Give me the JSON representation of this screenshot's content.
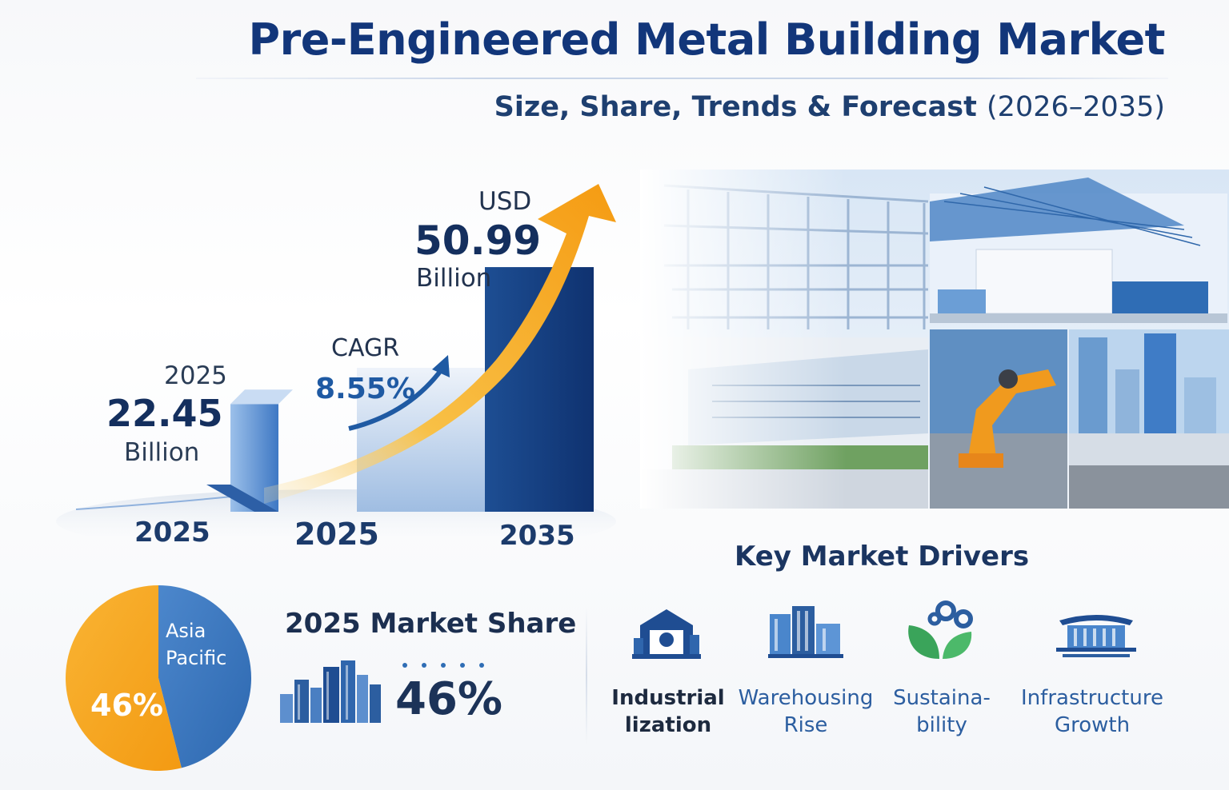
{
  "header": {
    "title": "Pre-Engineered Metal Building Market",
    "subtitle_main": "Size, Share, Trends & Forecast",
    "subtitle_years": "(2026–2035)"
  },
  "chart_data": [
    {
      "type": "bar",
      "categories": [
        "2025",
        "2025",
        "2035"
      ],
      "values": [
        22.45,
        30,
        50.99
      ],
      "unit": "Billion",
      "callouts": {
        "start_year": "2025",
        "start_value": "22.45",
        "start_unit": "Billion",
        "cagr_label": "CAGR",
        "cagr_value": "8.55%",
        "end_currency": "USD",
        "end_value": "50.99",
        "end_unit": "Billion"
      },
      "trend_arrow": true,
      "colors": {
        "bar_light": "#6f9fd8",
        "bar_dark": "#163f7f",
        "arrow": "#f4a51c"
      }
    },
    {
      "type": "pie",
      "title": "2025 Market Share",
      "slices": [
        {
          "label": "Asia Pacific",
          "value": 46,
          "color": "#3b78c1"
        },
        {
          "label": "",
          "value": 54,
          "color": "#f6a21c"
        }
      ],
      "slice_label": "46%",
      "share_value": "46%"
    }
  ],
  "drivers": {
    "title": "Key Market Drivers",
    "items": [
      {
        "line1": "Industrial",
        "line2": "lization",
        "icon": "factory-icon",
        "color": "#1d2a3f"
      },
      {
        "line1": "Warehousing",
        "line2": "Rise",
        "icon": "warehouse-icon",
        "color": "#2c5ea0"
      },
      {
        "line1": "Sustaina-",
        "line2": "bility",
        "icon": "leaf-gears-icon",
        "color": "#2c5ea0"
      },
      {
        "line1": "Infrastructure",
        "line2": "Growth",
        "icon": "terminal-building-icon",
        "color": "#2c5ea0"
      }
    ]
  },
  "colors": {
    "navy": "#12367a",
    "blue": "#2c6db5",
    "orange": "#f6a21c",
    "green": "#3aa45a"
  }
}
